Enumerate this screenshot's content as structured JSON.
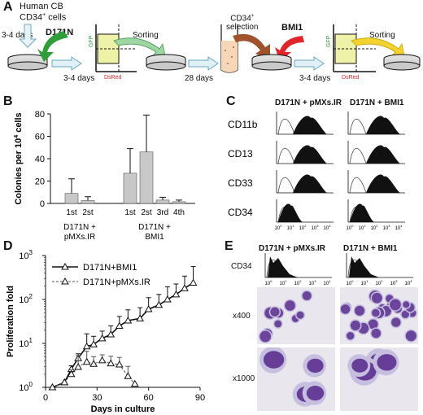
{
  "panels": {
    "a": "A",
    "b": "B",
    "c": "C",
    "d": "D",
    "e": "E"
  },
  "panel_a": {
    "source": "Human CB",
    "cells": "CD34",
    "cells_sup": "+",
    "cells_suffix": " cells",
    "step1_duration": "3-4 days",
    "transduction1": "D171N",
    "step2_duration": "3-4 days",
    "sorting1": "Sorting",
    "gfp": "GFP",
    "dsred": "DsRed",
    "culture_duration": "28 days",
    "selection_line1": "CD34",
    "selection_sup": "+",
    "selection_line2": "selection",
    "transduction2": "BMI1",
    "step3_duration": "3-4 days",
    "sorting2": "Sorting",
    "colors": {
      "arrow_green": "#2e9e3a",
      "arrow_red": "#e0262b",
      "arrow_brown": "#a0522d",
      "arrow_yellow": "#f2d22e",
      "gate_fill": "#eef2a8",
      "dish_fill": "#d9d9d9",
      "tube_fill": "#f6d7b8"
    }
  },
  "panel_b": {
    "ylabel": "Colonies per 10",
    "ylabel_sup": "4",
    "ylabel_suffix": " cells",
    "groups": [
      {
        "label_line1": "D171N +",
        "label_line2": "pMXs.IR",
        "bars": [
          {
            "label": "1st",
            "value": 9,
            "err": 13
          },
          {
            "label": "2st",
            "value": 2.5,
            "err": 3.5
          }
        ]
      },
      {
        "label_line1": "D171N +",
        "label_line2": "BMI1",
        "bars": [
          {
            "label": "1st",
            "value": 27,
            "err": 22
          },
          {
            "label": "2st",
            "value": 46,
            "err": 33
          },
          {
            "label": "3rd",
            "value": 3,
            "err": 2.5
          },
          {
            "label": "4th",
            "value": 1.5,
            "err": 1.5
          }
        ]
      }
    ],
    "ylim": [
      0,
      80
    ],
    "yticks": [
      "0",
      "20",
      "40",
      "60",
      "80"
    ],
    "bar_color": "#c8c8c8"
  },
  "panel_c": {
    "columns": [
      "D171N + pMXs.IR",
      "D171N + BMI1"
    ],
    "rows": [
      "CD11b",
      "CD13",
      "CD33",
      "CD34"
    ],
    "ticks": [
      "10",
      "10",
      "10",
      "10",
      "10"
    ],
    "tick_sups": [
      "0",
      "1",
      "2",
      "3",
      "4"
    ]
  },
  "chart_data": {
    "type": "line",
    "ylabel": "Proliferation fold",
    "xlabel": "Days in culture",
    "x_ticks": [
      "0",
      "30",
      "60",
      "90"
    ],
    "xlim": [
      0,
      90
    ],
    "y_scale": "log",
    "ylim": [
      1,
      1000
    ],
    "y_tick_base": "10",
    "y_tick_exps": [
      "0",
      "1",
      "2",
      "3"
    ],
    "legend_position": "top-left",
    "series": [
      {
        "name": "D171N+BMI1",
        "style": "solid",
        "points": [
          [
            4,
            1
          ],
          [
            11,
            1.3
          ],
          [
            15,
            2.6
          ],
          [
            19,
            4.6
          ],
          [
            24,
            8.5
          ],
          [
            28,
            9.5
          ],
          [
            33,
            13
          ],
          [
            38,
            16
          ],
          [
            43,
            25
          ],
          [
            48,
            33
          ],
          [
            55,
            37
          ],
          [
            60,
            60
          ],
          [
            66,
            75
          ],
          [
            71,
            100
          ],
          [
            76,
            130
          ],
          [
            81,
            180
          ],
          [
            86,
            240
          ]
        ],
        "err": [
          [
            15,
            0.5
          ],
          [
            19,
            1.2
          ],
          [
            24,
            8
          ],
          [
            28,
            5
          ],
          [
            33,
            6
          ],
          [
            38,
            9
          ],
          [
            43,
            16
          ],
          [
            48,
            25
          ],
          [
            55,
            28
          ],
          [
            60,
            50
          ],
          [
            66,
            55
          ],
          [
            71,
            95
          ],
          [
            76,
            95
          ],
          [
            81,
            160
          ],
          [
            86,
            320
          ]
        ]
      },
      {
        "name": "D171N+pMXs.IR",
        "style": "dashed",
        "points": [
          [
            4,
            1
          ],
          [
            11,
            1.3
          ],
          [
            15,
            2
          ],
          [
            19,
            2.9
          ],
          [
            24,
            3.8
          ],
          [
            28,
            3.4
          ],
          [
            33,
            4.1
          ],
          [
            38,
            3.5
          ],
          [
            43,
            3.3
          ],
          [
            48,
            1.8
          ],
          [
            52,
            1.2
          ]
        ],
        "err": [
          [
            15,
            0.5
          ],
          [
            19,
            2.4
          ],
          [
            24,
            2.8
          ],
          [
            28,
            1.6
          ],
          [
            33,
            1.4
          ],
          [
            38,
            1.6
          ],
          [
            43,
            1.5
          ],
          [
            48,
            1.2
          ]
        ]
      }
    ]
  },
  "panel_e": {
    "columns": [
      "D171N + pMXs.IR",
      "D171N + BMI1"
    ],
    "hist_row_label": "CD34",
    "ticks_base": "10",
    "tick_sups": [
      "0",
      "1",
      "2",
      "3",
      "4"
    ],
    "magnifications": [
      "x400",
      "x1000"
    ],
    "colors": {
      "cytoplasm": "#c7bfe0",
      "nucleus": "#5b2f8f",
      "background": "#e9e6ee"
    }
  }
}
